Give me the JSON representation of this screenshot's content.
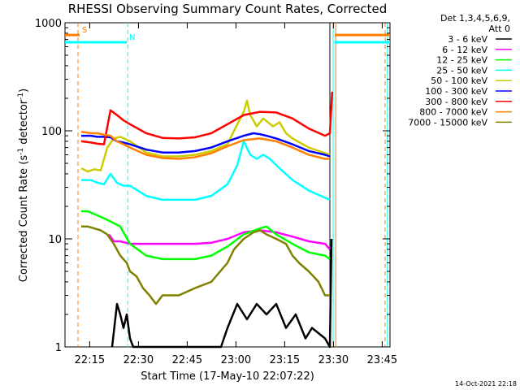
{
  "chart_data": {
    "type": "line",
    "title": "RHESSI Observing Summary Count Rates, Corrected",
    "xlabel": "Start Time (17-May-10 22:07:22)",
    "ylabel": "Corrected Count Rate (s⁻¹ detector⁻¹)",
    "ylabel_main": "Corrected Count Rate (s",
    "ylabel_sup1": "-1",
    "ylabel_mid": " detector",
    "ylabel_sup2": "-1",
    "ylabel_end": ")",
    "x_axis_unit": "minutes after 22:07:22",
    "xlim": [
      0,
      100
    ],
    "ylim": [
      1,
      1000
    ],
    "yscale": "log",
    "x_tick_labels": [
      "22:15",
      "22:30",
      "22:45",
      "23:00",
      "23:15",
      "23:30",
      "23:45"
    ],
    "x_tick_minutes": [
      7.6,
      22.6,
      37.6,
      52.6,
      67.6,
      82.6,
      97.6
    ],
    "y_tick_labels": [
      "1",
      "10",
      "100",
      "1000"
    ],
    "y_tick_values": [
      1,
      10,
      100,
      1000
    ],
    "legend_title": "Det 1,3,4,5,6,9,",
    "legend_title2": "Att 0",
    "legend_position": "outside-right",
    "timestamp": "14-Oct-2021 22:18",
    "flags": [
      {
        "label": "S",
        "x_start": 0,
        "x_end": 4.5,
        "value": 770,
        "color": "#ff7f00"
      },
      {
        "label": "N",
        "x_start": 0,
        "x_end": 19,
        "value": 660,
        "color": "#00ffff"
      },
      {
        "label": "",
        "x_start": 83,
        "x_end": 100,
        "value": 770,
        "color": "#ff7f00"
      },
      {
        "label": "",
        "x_start": 83,
        "x_end": 100,
        "value": 660,
        "color": "#00ffff"
      }
    ],
    "vlines": [
      {
        "x": 4,
        "color": "#ff7f00",
        "style": "dashed"
      },
      {
        "x": 19.3,
        "color": "#00ffff",
        "style": "dashed"
      },
      {
        "x": 81.5,
        "color": "#000000",
        "style": "solid"
      },
      {
        "x": 82.5,
        "color": "#00ffff",
        "style": "solid"
      },
      {
        "x": 83.3,
        "color": "#ff7f00",
        "style": "solid"
      },
      {
        "x": 98.5,
        "color": "#ff7f00",
        "style": "dashed"
      },
      {
        "x": 99.2,
        "color": "#00ffff",
        "style": "solid"
      }
    ],
    "series": [
      {
        "name": "3 - 6 keV",
        "color": "#000000",
        "x": [
          14.5,
          16,
          17,
          18,
          19,
          20,
          21,
          48,
          50,
          53,
          56,
          59,
          62,
          65,
          68,
          71,
          74,
          76,
          80,
          81.5,
          82
        ],
        "y": [
          1,
          2.5,
          2,
          1.5,
          2,
          1.2,
          1,
          1,
          1.5,
          2.5,
          1.8,
          2.5,
          2,
          2.5,
          1.5,
          2,
          1.2,
          1.5,
          1.2,
          1,
          10
        ]
      },
      {
        "name": "6 - 12 keV",
        "color": "#ff00ff",
        "x": [
          13.5,
          15,
          17,
          20,
          25,
          30,
          35,
          40,
          45,
          50,
          55,
          60,
          65,
          70,
          75,
          80,
          81.5
        ],
        "y": [
          11,
          9.5,
          9.5,
          9,
          9,
          9,
          9,
          9,
          9.2,
          10,
          11.5,
          12,
          11.5,
          10.5,
          9.5,
          9,
          8
        ]
      },
      {
        "name": "12 - 25 keV",
        "color": "#00ff00",
        "x": [
          5,
          7,
          9,
          11,
          13,
          15,
          17,
          20,
          25,
          30,
          35,
          40,
          45,
          50,
          55,
          60,
          62,
          65,
          70,
          75,
          80,
          81.5
        ],
        "y": [
          18,
          18,
          17,
          16,
          15,
          14,
          13,
          9,
          7,
          6.5,
          6.5,
          6.5,
          7,
          8.5,
          11,
          12.5,
          13,
          11,
          9,
          7.5,
          7,
          6.5
        ]
      },
      {
        "name": "25 - 50 keV",
        "color": "#00ffff",
        "x": [
          5,
          8,
          10,
          12,
          14,
          16,
          18,
          20,
          25,
          30,
          35,
          40,
          45,
          50,
          53,
          55,
          57,
          59,
          61,
          63,
          66,
          70,
          75,
          80,
          81.5
        ],
        "y": [
          35,
          35,
          33,
          32,
          40,
          33,
          31,
          31,
          25,
          23,
          23,
          23,
          25,
          32,
          48,
          80,
          60,
          55,
          60,
          55,
          45,
          35,
          28,
          24,
          23
        ]
      },
      {
        "name": "50 - 100 keV",
        "color": "#cccc00",
        "x": [
          5,
          7,
          9,
          11,
          13,
          15,
          17,
          20,
          25,
          30,
          35,
          40,
          45,
          50,
          52,
          55,
          56,
          57,
          59,
          61,
          64,
          66,
          68,
          70,
          75,
          80,
          81.5
        ],
        "y": [
          45,
          42,
          44,
          43,
          70,
          85,
          88,
          80,
          63,
          58,
          58,
          60,
          65,
          75,
          100,
          150,
          190,
          140,
          110,
          130,
          110,
          120,
          95,
          85,
          70,
          62,
          60
        ]
      },
      {
        "name": "100 - 300 keV",
        "color": "#0000ff",
        "x": [
          5,
          8,
          10,
          12,
          14,
          16,
          18,
          20,
          25,
          30,
          35,
          40,
          45,
          50,
          55,
          58,
          60,
          62,
          65,
          70,
          75,
          80,
          81.5
        ],
        "y": [
          90,
          90,
          88,
          88,
          87,
          80,
          78,
          75,
          67,
          63,
          63,
          65,
          70,
          80,
          90,
          95,
          93,
          90,
          85,
          75,
          65,
          60,
          58
        ]
      },
      {
        "name": "300 - 800 keV",
        "color": "#ff0000",
        "x": [
          5,
          8,
          10,
          12,
          14,
          16,
          18,
          20,
          25,
          30,
          35,
          40,
          45,
          50,
          55,
          60,
          65,
          70,
          75,
          80,
          81.5,
          82.2
        ],
        "y": [
          80,
          78,
          76,
          75,
          155,
          140,
          125,
          115,
          95,
          86,
          85,
          87,
          95,
          115,
          140,
          150,
          148,
          130,
          105,
          90,
          95,
          230
        ]
      },
      {
        "name": "800 - 7000 keV",
        "color": "#ff7f00",
        "x": [
          5,
          8,
          10,
          12,
          14,
          16,
          18,
          20,
          25,
          30,
          35,
          40,
          45,
          50,
          55,
          60,
          65,
          70,
          75,
          80,
          81.5
        ],
        "y": [
          98,
          95,
          95,
          92,
          90,
          80,
          75,
          70,
          60,
          56,
          55,
          57,
          62,
          72,
          82,
          85,
          80,
          70,
          60,
          55,
          55
        ]
      },
      {
        "name": "7000 - 15000 keV",
        "color": "#808000",
        "x": [
          5,
          7,
          9,
          11,
          13,
          15,
          17,
          19,
          20,
          22,
          24,
          26,
          28,
          30,
          35,
          40,
          45,
          50,
          52,
          55,
          58,
          60,
          62,
          65,
          68,
          70,
          72,
          75,
          78,
          80,
          81.5
        ],
        "y": [
          13,
          13,
          12.5,
          12,
          11,
          9,
          7,
          6,
          5,
          4.5,
          3.5,
          3,
          2.5,
          3,
          3,
          3.5,
          4,
          6,
          8,
          10,
          11.5,
          12,
          11,
          10,
          9,
          7,
          6,
          5,
          4,
          3,
          3
        ]
      }
    ]
  }
}
